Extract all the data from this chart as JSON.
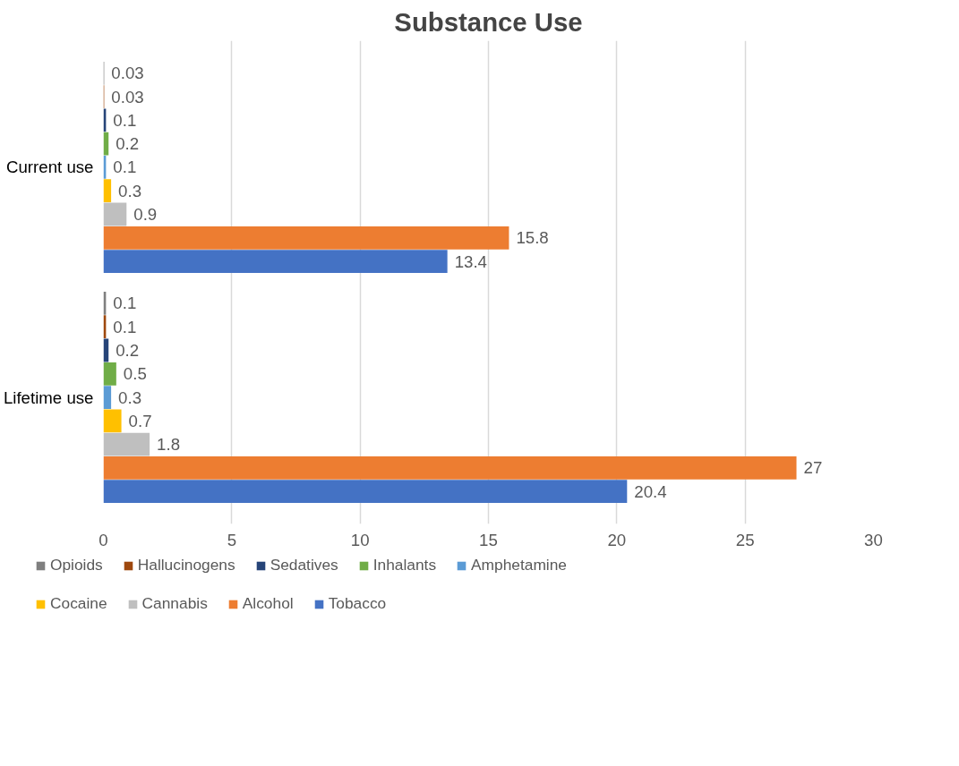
{
  "chart_data": {
    "type": "bar",
    "orientation": "horizontal",
    "title": "Substance Use",
    "categories": [
      "Current use",
      "Lifetime use"
    ],
    "series": [
      {
        "name": "Opioids",
        "color": "#7f7f7f",
        "values": [
          0.03,
          0.1
        ]
      },
      {
        "name": "Hallucinogens",
        "color": "#9e480e",
        "values": [
          0.03,
          0.1
        ]
      },
      {
        "name": "Sedatives",
        "color": "#264478",
        "values": [
          0.1,
          0.2
        ]
      },
      {
        "name": "Inhalants",
        "color": "#70ad47",
        "values": [
          0.2,
          0.5
        ]
      },
      {
        "name": "Amphetamine",
        "color": "#5b9bd5",
        "values": [
          0.1,
          0.3
        ]
      },
      {
        "name": "Cocaine",
        "color": "#ffc000",
        "values": [
          0.3,
          0.7
        ]
      },
      {
        "name": "Cannabis",
        "color": "#bfbfbf",
        "values": [
          0.9,
          1.8
        ]
      },
      {
        "name": "Alcohol",
        "color": "#ed7d31",
        "values": [
          15.8,
          27
        ]
      },
      {
        "name": "Tobacco",
        "color": "#4472c4",
        "values": [
          13.4,
          20.4
        ]
      }
    ],
    "xlim": [
      0,
      30
    ],
    "xticks": [
      0,
      5,
      10,
      15,
      20,
      25,
      30
    ],
    "grid": "x",
    "legend": "bottom",
    "data_labels": true
  }
}
